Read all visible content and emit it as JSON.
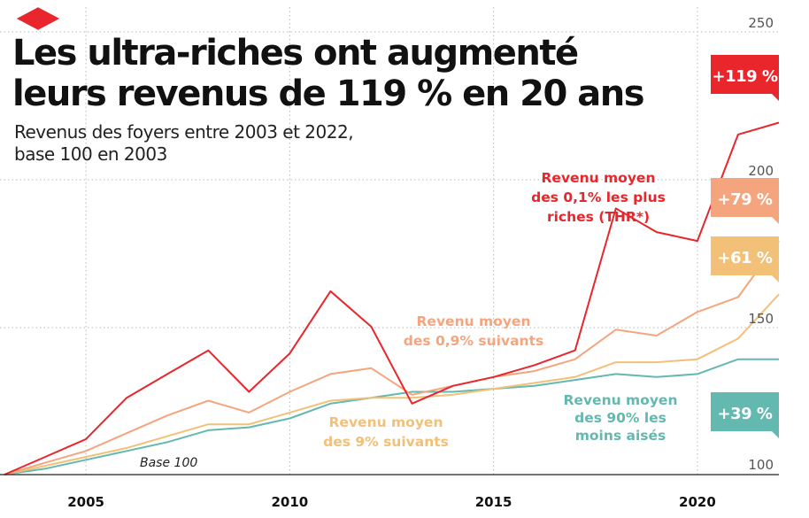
{
  "header": {
    "title_line1": "Les ultra-riches ont augmenté",
    "title_line2": "leurs revenus de 119 % en 20 ans",
    "subtitle_line1": "Revenus des foyers entre 2003 et 2022,",
    "subtitle_line2": "base 100 en 2003"
  },
  "colors": {
    "thr": "#e8262b",
    "next09": "#f5a57d",
    "next9": "#f2c077",
    "bottom90": "#63b8b0",
    "grid": "#b8b8b8",
    "brand": "#e8262b"
  },
  "chart_data": {
    "type": "line",
    "title": "Les ultra-riches ont augmenté leurs revenus de 119 % en 20 ans",
    "subtitle": "Revenus des foyers entre 2003 et 2022, base 100 en 2003",
    "xlabel": "",
    "ylabel": "",
    "x": [
      2003,
      2004,
      2005,
      2006,
      2007,
      2008,
      2009,
      2010,
      2011,
      2012,
      2013,
      2014,
      2015,
      2016,
      2017,
      2018,
      2019,
      2020,
      2021,
      2022
    ],
    "xlim": [
      2003,
      2022
    ],
    "ylim": [
      95,
      255
    ],
    "xticks": [
      "2005",
      "2010",
      "2015",
      "2020"
    ],
    "yticks": [
      "100",
      "150",
      "200",
      "250"
    ],
    "grid": true,
    "baseline_label": "Base 100",
    "series": [
      {
        "key": "thr",
        "name": "Revenu moyen des 0,1% les plus riches (THR*)",
        "label_lines": [
          "Revenu moyen",
          "des 0,1% les plus",
          "riches (THR*)"
        ],
        "end_label": "+119 %",
        "values": [
          100,
          106,
          112,
          126,
          134,
          142,
          128,
          141,
          162,
          150,
          124,
          130,
          133,
          137,
          142,
          190,
          182,
          179,
          215,
          219
        ]
      },
      {
        "key": "next09",
        "name": "Revenu moyen des 0,9% suivants",
        "label_lines": [
          "Revenu moyen",
          "des 0,9% suivants"
        ],
        "end_label": "+79 %",
        "values": [
          100,
          104,
          108,
          114,
          120,
          125,
          121,
          128,
          134,
          136,
          127,
          130,
          133,
          135,
          139,
          149,
          147,
          155,
          160,
          179
        ]
      },
      {
        "key": "next9",
        "name": "Revenu moyen des 9% suivants",
        "label_lines": [
          "Revenu moyen",
          "des 9% suivants"
        ],
        "end_label": "+61 %",
        "values": [
          100,
          103,
          106,
          109,
          113,
          117,
          117,
          121,
          125,
          126,
          126,
          127,
          129,
          131,
          133,
          138,
          138,
          139,
          146,
          161
        ]
      },
      {
        "key": "bottom90",
        "name": "Revenu moyen des 90% les moins aisés",
        "label_lines": [
          "Revenu moyen",
          "des 90% les",
          "moins aisés"
        ],
        "end_label": "+39 %",
        "values": [
          100,
          102,
          105,
          108,
          111,
          115,
          116,
          119,
          124,
          126,
          128,
          128,
          129,
          130,
          132,
          134,
          133,
          134,
          139,
          139
        ]
      }
    ]
  }
}
